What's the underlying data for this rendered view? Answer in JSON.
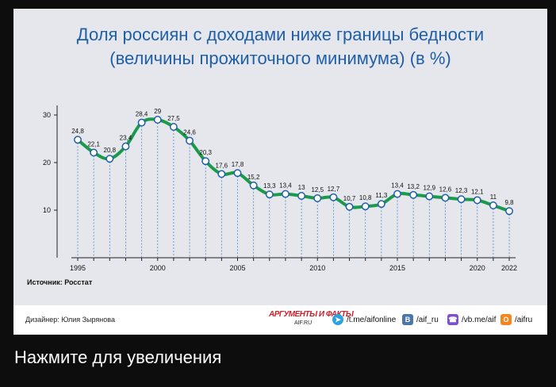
{
  "title_line1": "Доля россиян с доходами ниже границы бедности",
  "title_line2": "(величины прожиточного минимума) (в %)",
  "source": "Источник: Росстат",
  "designer": "Дизайнер: Юлия Зырянова",
  "logo": {
    "line1": "АРГУМЕНТЫ И ФАКТЫ",
    "line2": "AIF.RU"
  },
  "socials": [
    {
      "icon": "telegram-icon",
      "label": "/t.me/aifonline"
    },
    {
      "icon": "vk-icon",
      "label": "/aif_ru"
    },
    {
      "icon": "viber-icon",
      "label": "/vb.me/aif"
    },
    {
      "icon": "ok-icon",
      "label": "/aifru"
    }
  ],
  "caption": "Нажмите для увеличения",
  "colors": {
    "title": "#1f5fa8",
    "line": "#1a9a4a",
    "marker_stroke": "#1f5fa8",
    "dashes": "#4a86c8",
    "background": "#e6e7ec"
  },
  "chart_data": {
    "type": "line",
    "title": "Доля россиян с доходами ниже границы бедности (величины прожиточного минимума) (в %)",
    "x": [
      1995,
      1996,
      1997,
      1998,
      1999,
      2000,
      2001,
      2002,
      2003,
      2004,
      2005,
      2006,
      2007,
      2008,
      2009,
      2010,
      2011,
      2012,
      2013,
      2014,
      2015,
      2016,
      2017,
      2018,
      2019,
      2020,
      2021,
      2022
    ],
    "values": [
      24.8,
      22.1,
      20.8,
      23.4,
      28.4,
      29,
      27.5,
      24.6,
      20.3,
      17.6,
      17.8,
      15.2,
      13.3,
      13.4,
      13,
      12.5,
      12.7,
      10.7,
      10.8,
      11.3,
      13.4,
      13.2,
      12.9,
      12.6,
      12.3,
      12.1,
      11,
      9.8
    ],
    "labels": [
      "24,8",
      "22,1",
      "20,8",
      "23,4",
      "28,4",
      "29",
      "27,5",
      "24,6",
      "20,3",
      "17,6",
      "17,8",
      "15,2",
      "13,3",
      "13,4",
      "13",
      "12,5",
      "12,7",
      "10,7",
      "10,8",
      "11,3",
      "13,4",
      "13,2",
      "12,9",
      "12,6",
      "12,3",
      "12,1",
      "11",
      "9,8"
    ],
    "x_ticks": [
      1995,
      2000,
      2005,
      2010,
      2015,
      2020,
      2022
    ],
    "y_ticks": [
      10,
      20,
      30
    ],
    "ylim": [
      0,
      32
    ],
    "grid": false,
    "xlabel": "",
    "ylabel": ""
  }
}
